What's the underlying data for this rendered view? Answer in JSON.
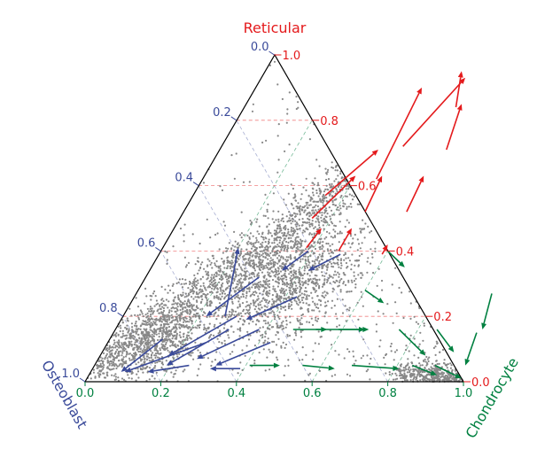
{
  "chart_data": {
    "type": "scatter",
    "subtype": "ternary",
    "axes": {
      "top": {
        "label": "Reticular",
        "color": "#e41a1c",
        "ticks": [
          "0.0",
          "0.2",
          "0.4",
          "0.6",
          "0.8",
          "1.0"
        ]
      },
      "left": {
        "label": "Osteoblast",
        "color": "#3a4a9a",
        "ticks": [
          "0.0",
          "0.2",
          "0.4",
          "0.6",
          "0.8",
          "1.0"
        ]
      },
      "right": {
        "label": "Chondrocyte",
        "color": "#008040",
        "ticks": [
          "0.0",
          "0.2",
          "0.4",
          "0.6",
          "0.8",
          "1.0"
        ]
      }
    },
    "grid": true,
    "scatter_color": "#888888",
    "density_branches": [
      {
        "name": "reticular-osteoblast ridge",
        "from": [
          0.0,
          0.02
        ],
        "to": [
          0.62,
          0.93
        ],
        "count": 2200,
        "spread": 0.035
      },
      {
        "name": "osteoblast corner",
        "center": [
          0.12,
          0.12
        ],
        "count": 900,
        "spread": 0.07
      },
      {
        "name": "central cloud",
        "center": [
          0.38,
          0.3
        ],
        "count": 1300,
        "spread": 0.09
      },
      {
        "name": "chondrocyte edge",
        "from": [
          0.82,
          0.03
        ],
        "to": [
          0.98,
          0.003
        ],
        "count": 500,
        "spread": 0.02
      },
      {
        "name": "sparse background",
        "count": 400
      }
    ],
    "arrows": [
      {
        "start": [
          0.48,
          0.72
        ],
        "end": [
          0.54,
          0.93
        ],
        "color": "#e41a1c"
      },
      {
        "start": [
          0.56,
          0.84
        ],
        "end": [
          0.52,
          0.95
        ],
        "color": "#e41a1c"
      },
      {
        "start": [
          0.46,
          0.62
        ],
        "end": [
          0.44,
          0.9
        ],
        "color": "#e41a1c"
      },
      {
        "start": [
          0.35,
          0.57
        ],
        "end": [
          0.42,
          0.71
        ],
        "color": "#e41a1c"
      },
      {
        "start": [
          0.6,
          0.71
        ],
        "end": [
          0.57,
          0.85
        ],
        "color": "#e41a1c"
      },
      {
        "start": [
          0.35,
          0.5
        ],
        "end": [
          0.4,
          0.63
        ],
        "color": "#e41a1c"
      },
      {
        "start": [
          0.48,
          0.52
        ],
        "end": [
          0.47,
          0.63
        ],
        "color": "#e41a1c"
      },
      {
        "start": [
          0.59,
          0.52
        ],
        "end": [
          0.58,
          0.63
        ],
        "color": "#e41a1c"
      },
      {
        "start": [
          0.47,
          0.4
        ],
        "end": [
          0.47,
          0.47
        ],
        "color": "#e41a1c"
      },
      {
        "start": [
          0.38,
          0.41
        ],
        "end": [
          0.39,
          0.47
        ],
        "color": "#e41a1c"
      },
      {
        "start": [
          0.59,
          0.39
        ],
        "end": [
          0.59,
          0.42
        ],
        "color": "#e41a1c"
      },
      {
        "start": [
          0.27,
          0.2
        ],
        "end": [
          0.2,
          0.41
        ],
        "color": "#3a4a9a"
      },
      {
        "start": [
          0.3,
          0.32
        ],
        "end": [
          0.22,
          0.2
        ],
        "color": "#3a4a9a"
      },
      {
        "start": [
          0.3,
          0.2
        ],
        "end": [
          0.18,
          0.08
        ],
        "color": "#3a4a9a"
      },
      {
        "start": [
          0.39,
          0.4
        ],
        "end": [
          0.35,
          0.34
        ],
        "color": "#3a4a9a"
      },
      {
        "start": [
          0.48,
          0.39
        ],
        "end": [
          0.42,
          0.34
        ],
        "color": "#3a4a9a"
      },
      {
        "start": [
          0.3,
          0.16
        ],
        "end": [
          0.19,
          0.05
        ],
        "color": "#3a4a9a"
      },
      {
        "start": [
          0.43,
          0.26
        ],
        "end": [
          0.33,
          0.19
        ],
        "color": "#3a4a9a"
      },
      {
        "start": [
          0.26,
          0.12
        ],
        "end": [
          0.09,
          0.03
        ],
        "color": "#3a4a9a"
      },
      {
        "start": [
          0.38,
          0.16
        ],
        "end": [
          0.26,
          0.07
        ],
        "color": "#3a4a9a"
      },
      {
        "start": [
          0.14,
          0.13
        ],
        "end": [
          0.08,
          0.03
        ],
        "color": "#3a4a9a"
      },
      {
        "start": [
          0.25,
          0.05
        ],
        "end": [
          0.15,
          0.03
        ],
        "color": "#3a4a9a"
      },
      {
        "start": [
          0.43,
          0.12
        ],
        "end": [
          0.32,
          0.05
        ],
        "color": "#3a4a9a"
      },
      {
        "start": [
          0.39,
          0.04
        ],
        "end": [
          0.31,
          0.04
        ],
        "color": "#3a4a9a"
      },
      {
        "start": [
          0.6,
          0.4
        ],
        "end": [
          0.67,
          0.35
        ],
        "color": "#008040"
      },
      {
        "start": [
          0.6,
          0.28
        ],
        "end": [
          0.67,
          0.24
        ],
        "color": "#008040"
      },
      {
        "start": [
          0.47,
          0.16
        ],
        "end": [
          0.56,
          0.16
        ],
        "color": "#008040"
      },
      {
        "start": [
          0.53,
          0.16
        ],
        "end": [
          0.66,
          0.16
        ],
        "color": "#008040"
      },
      {
        "start": [
          0.59,
          0.16
        ],
        "end": [
          0.67,
          0.16
        ],
        "color": "#008040"
      },
      {
        "start": [
          0.75,
          0.16
        ],
        "end": [
          0.86,
          0.08
        ],
        "color": "#008040"
      },
      {
        "start": [
          0.85,
          0.16
        ],
        "end": [
          0.93,
          0.09
        ],
        "color": "#008040"
      },
      {
        "start": [
          0.94,
          0.27
        ],
        "end": [
          0.97,
          0.16
        ],
        "color": "#008040"
      },
      {
        "start": [
          0.96,
          0.15
        ],
        "end": [
          0.98,
          0.05
        ],
        "color": "#008040"
      },
      {
        "start": [
          0.41,
          0.05
        ],
        "end": [
          0.49,
          0.05
        ],
        "color": "#008040"
      },
      {
        "start": [
          0.55,
          0.05
        ],
        "end": [
          0.64,
          0.04
        ],
        "color": "#008040"
      },
      {
        "start": [
          0.68,
          0.05
        ],
        "end": [
          0.81,
          0.04
        ],
        "color": "#008040"
      },
      {
        "start": [
          0.84,
          0.05
        ],
        "end": [
          0.92,
          0.02
        ],
        "color": "#008040"
      },
      {
        "start": [
          0.9,
          0.05
        ],
        "end": [
          0.99,
          0.01
        ],
        "color": "#008040"
      }
    ]
  }
}
